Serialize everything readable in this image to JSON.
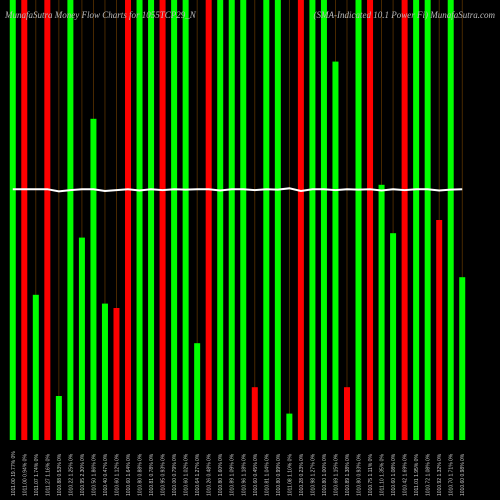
{
  "chart_data": {
    "type": "bar",
    "title": "MunafaSutra Money Flow Charts for 1055TCP29_N",
    "subtitle": "(SMA-Indicated 10.1 Power Fi) MunafaSutra.com",
    "categories": [
      "1011.00 19.77% 0%",
      "1011.00 0.94% 0%",
      "1011.07 1.74% 0%",
      "1011.27 1.16% 0%",
      "1010.88 0.53% 0%",
      "1010.22 1.25% 0%",
      "1010.95 2.30% 0%",
      "1010.50 1.86% 0%",
      "1010.40 0.47% 0%",
      "1010.60 1.12% 0%",
      "1010.60 1.64% 0%",
      "1010.80 0.88% 0%",
      "1010.81 0.78% 0%",
      "1010.95 0.93% 0%",
      "1010.00 0.79% 0%",
      "1010.60 1.02% 0%",
      "1010.64 1.27% 0%",
      "1010.26 0.48% 0%",
      "1010.80 1.60% 0%",
      "1010.89 1.09% 0%",
      "1010.96 1.18% 0%",
      "1010.60 0.45% 0%",
      "1010.81 1.04% 0%",
      "1010.80 0.99% 0%",
      "1011.08 1.10% 0%",
      "1010.28 0.23% 0%",
      "1010.98 1.27% 0%",
      "1010.80 1.00% 0%",
      "1010.69 1.15% 0%",
      "1010.89 1.38% 0%",
      "1010.80 0.93% 0%",
      "1010.75 1.11% 0%",
      "1011.10 1.35% 0%",
      "1010.60 1.08% 0%",
      "1010.42 1.69% 0%",
      "1011.01 1.95% 0%",
      "1010.72 1.08% 0%",
      "1010.92 1.32% 0%",
      "1010.70 1.71% 0%",
      "1010.60 0.98% 0%"
    ],
    "series": [
      {
        "name": "Money Flow",
        "colors": [
          "#00ff00",
          "#ff0000",
          "#00ff00",
          "#ff0000",
          "#00ff00",
          "#00ff00",
          "#00ff00",
          "#00ff00",
          "#00ff00",
          "#ff0000",
          "#ff0000",
          "#00ff00",
          "#00ff00",
          "#ff0000",
          "#00ff00",
          "#00ff00",
          "#00ff00",
          "#ff0000",
          "#00ff00",
          "#00ff00",
          "#00ff00",
          "#ff0000",
          "#00ff00",
          "#00ff00",
          "#00ff00",
          "#ff0000",
          "#00ff00",
          "#00ff00",
          "#00ff00",
          "#ff0000",
          "#00ff00",
          "#ff0000",
          "#00ff00",
          "#00ff00",
          "#ff0000",
          "#00ff00",
          "#00ff00",
          "#ff0000",
          "#00ff00",
          "#00ff00"
        ],
        "values": [
          100,
          100,
          33,
          100,
          10,
          100,
          46,
          73,
          31,
          30,
          100,
          100,
          100,
          100,
          100,
          100,
          22,
          100,
          100,
          100,
          100,
          12,
          100,
          100,
          6,
          100,
          100,
          100,
          86,
          12,
          100,
          100,
          58,
          47,
          100,
          100,
          100,
          50,
          100,
          37
        ]
      },
      {
        "name": "Average",
        "color": "#ffffff",
        "values": [
          57,
          57,
          57,
          57,
          56.5,
          56.8,
          57,
          57,
          56.6,
          56.8,
          57,
          56.7,
          57,
          56.8,
          57,
          56.9,
          57,
          57,
          56.7,
          57,
          57,
          56.8,
          57,
          56.9,
          57.2,
          56.6,
          57,
          57,
          56.8,
          57,
          56.9,
          57,
          56.7,
          57,
          56.8,
          57,
          57,
          56.7,
          56.9,
          57
        ]
      }
    ],
    "ylim": [
      0,
      100
    ]
  }
}
